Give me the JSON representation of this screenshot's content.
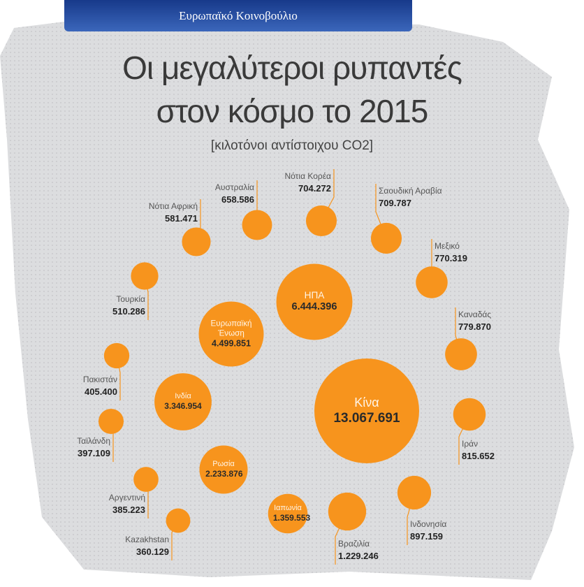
{
  "header": {
    "title": "Ευρωπαϊκό Κοινοβούλιο"
  },
  "chart_data": {
    "type": "bubble",
    "title": "Οι μεγαλύτεροι ρυπαντές στον κόσμο το 2015",
    "subtitle": "[κιλοτόνοι αντίστοιχου CO2]",
    "color": "#f7941d",
    "categories": [
      "Κίνα",
      "ΗΠΑ",
      "Ευρωπαϊκή Ένωση",
      "Ινδία",
      "Ρωσία",
      "Ιαπωνία",
      "Βραζιλία",
      "Ινδονησία",
      "Ιράν",
      "Καναδάς",
      "Μεξικό",
      "Σαουδική Αραβία",
      "Νότια Κορέα",
      "Αυστραλία",
      "Νότια Αφρική",
      "Τουρκία",
      "Πακιστάν",
      "Ταϊλάνδη",
      "Αργεντινή",
      "Kazakhstan"
    ],
    "values": [
      13067691,
      6444396,
      4499851,
      3346954,
      2233876,
      1359553,
      1229246,
      897159,
      815652,
      779870,
      770319,
      709787,
      704272,
      658586,
      581471,
      510286,
      405400,
      397109,
      385223,
      360129
    ],
    "value_labels": [
      "13.067.691",
      "6.444.396",
      "4.499.851",
      "3.346.954",
      "2.233.876",
      "1.359.553",
      "1.229.246",
      "897.159",
      "815.652",
      "779.870",
      "770.319",
      "709.787",
      "704.272",
      "658.586",
      "581.471",
      "510.286",
      "405.400",
      "397.109",
      "385.223",
      "360.129"
    ]
  }
}
